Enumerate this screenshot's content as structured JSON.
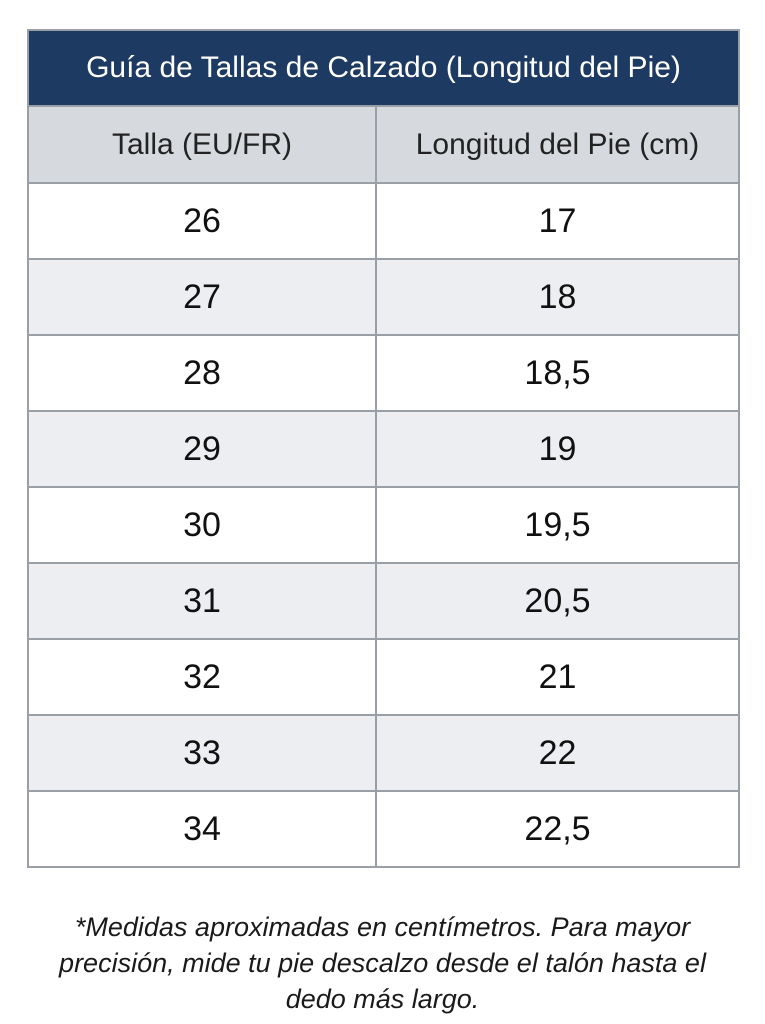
{
  "title": "Guía de Tallas de Calzado (Longitud del Pie)",
  "columns": [
    "Talla (EU/FR)",
    "Longitud del Pie (cm)"
  ],
  "rows": [
    {
      "size": "26",
      "length": "17"
    },
    {
      "size": "27",
      "length": "18"
    },
    {
      "size": "28",
      "length": "18,5"
    },
    {
      "size": "29",
      "length": "19"
    },
    {
      "size": "30",
      "length": "19,5"
    },
    {
      "size": "31",
      "length": "20,5"
    },
    {
      "size": "32",
      "length": "21"
    },
    {
      "size": "33",
      "length": "22"
    },
    {
      "size": "34",
      "length": "22,5"
    }
  ],
  "footnote": "*Medidas aproximadas en centímetros. Para mayor precisión, mide tu pie descalzo desde el talón hasta el dedo más largo.",
  "colors": {
    "title_bg": "#1d3a63",
    "header_bg": "#d6dadf",
    "row_alt_bg": "#eceef1",
    "border": "#9a9fa6"
  }
}
